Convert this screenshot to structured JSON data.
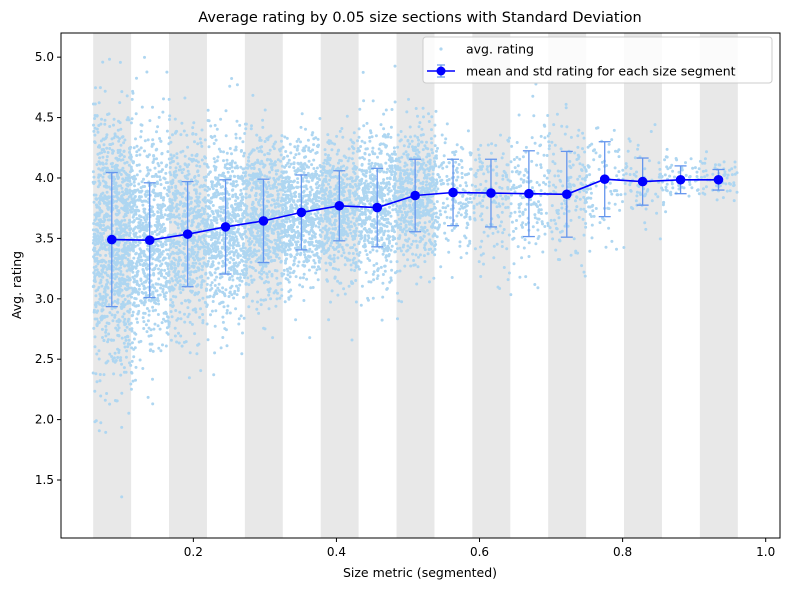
{
  "chart_data": {
    "type": "scatter",
    "title": "Average rating by 0.05 size sections with Standard Deviation",
    "xlabel": "Size metric (segmented)",
    "ylabel": "Avg. rating",
    "xlim": [
      0.015,
      1.02
    ],
    "ylim": [
      1.02,
      5.2
    ],
    "x_ticks": [
      {
        "value": 0.2,
        "label": "0.2"
      },
      {
        "value": 0.4,
        "label": "0.4"
      },
      {
        "value": 0.6,
        "label": "0.6"
      },
      {
        "value": 0.8,
        "label": "0.8"
      },
      {
        "value": 1.0,
        "label": "1.0"
      }
    ],
    "y_ticks": [
      {
        "value": 1.5,
        "label": "1.5"
      },
      {
        "value": 2.0,
        "label": "2.0"
      },
      {
        "value": 2.5,
        "label": "2.5"
      },
      {
        "value": 3.0,
        "label": "3.0"
      },
      {
        "value": 3.5,
        "label": "3.5"
      },
      {
        "value": 4.0,
        "label": "4.0"
      },
      {
        "value": 4.5,
        "label": "4.5"
      },
      {
        "value": 5.0,
        "label": "5.0"
      }
    ],
    "shaded_segments": [
      [
        0.06,
        0.113
      ],
      [
        0.166,
        0.219
      ],
      [
        0.272,
        0.325
      ],
      [
        0.378,
        0.431
      ],
      [
        0.484,
        0.537
      ],
      [
        0.59,
        0.643
      ],
      [
        0.696,
        0.749
      ],
      [
        0.802,
        0.855
      ],
      [
        0.908,
        0.961
      ]
    ],
    "series": [
      {
        "name": "avg. rating",
        "kind": "scatter",
        "color": "#aed6f1"
      },
      {
        "name": "mean and std rating for each size segment",
        "kind": "line-errorbar",
        "color": "#0000ff",
        "error_color": "#6495ed",
        "x": [
          0.086,
          0.139,
          0.192,
          0.245,
          0.298,
          0.351,
          0.404,
          0.457,
          0.51,
          0.563,
          0.616,
          0.669,
          0.722,
          0.775,
          0.828,
          0.881,
          0.934
        ],
        "y": [
          3.49,
          3.485,
          3.535,
          3.595,
          3.645,
          3.715,
          3.77,
          3.755,
          3.855,
          3.88,
          3.875,
          3.87,
          3.865,
          3.99,
          3.97,
          3.985,
          3.985
        ],
        "std": [
          0.555,
          0.475,
          0.435,
          0.39,
          0.345,
          0.31,
          0.29,
          0.325,
          0.3,
          0.275,
          0.28,
          0.355,
          0.355,
          0.31,
          0.195,
          0.115,
          0.085
        ]
      }
    ],
    "legend_position": "top-right",
    "grid": false
  }
}
